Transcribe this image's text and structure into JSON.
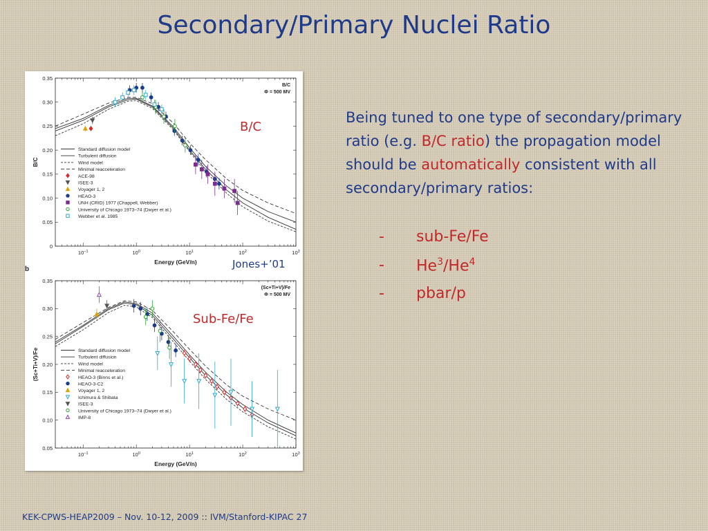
{
  "slide": {
    "title": "Secondary/Primary Nuclei Ratio",
    "intro_1": "Being tuned to one type of secondary/primary ratio (e.g. ",
    "intro_hl1": "B/C ratio",
    "intro_2": ") the propagation model should be ",
    "intro_hl2": "automatically",
    "intro_3": " consistent with all secondary/primary ratios:",
    "bullets": [
      {
        "dash": "-",
        "text": "sub-Fe/Fe",
        "sup1": "",
        "mid": "",
        "sup2": ""
      },
      {
        "dash": "-",
        "text": "He",
        "sup1": "3",
        "mid": "/He",
        "sup2": "4"
      },
      {
        "dash": "-",
        "text": "pbar/p",
        "sup1": "",
        "mid": "",
        "sup2": ""
      }
    ],
    "footer": "KEK-CPWS-HEAP2009 – Nov. 10-12, 2009 :: IVM/Stanford-KIPAC  27",
    "overlay_bc": "B/C",
    "overlay_jones": "Jones+’01",
    "overlay_subfe": "Sub-Fe/Fe",
    "colors": {
      "title_blue": "#1f3a8a",
      "highlight_red": "#c0282a"
    }
  },
  "chart_data": [
    {
      "type": "line",
      "panel_letter": "",
      "corner_label": [
        "B/C",
        "Φ = 500 MV"
      ],
      "xlabel": "Energy (GeV/n)",
      "ylabel": "B/C",
      "xscale": "log",
      "xlim": [
        0.03,
        1000
      ],
      "ylim": [
        0,
        0.35
      ],
      "x_ticks": [
        {
          "v": 0.1,
          "base": "10",
          "exp": "−1"
        },
        {
          "v": 1,
          "base": "10",
          "exp": "0"
        },
        {
          "v": 10,
          "base": "10",
          "exp": "1"
        },
        {
          "v": 100,
          "base": "10",
          "exp": "2"
        },
        {
          "v": 1000,
          "base": "10",
          "exp": "3"
        }
      ],
      "y_ticks": [
        "0",
        "0.05",
        "0.10",
        "0.15",
        "0.20",
        "0.25",
        "0.30",
        "0.35"
      ],
      "legend_position": "center-left",
      "models": [
        {
          "name": "Standard diffusion model",
          "dash": "",
          "x": [
            0.03,
            0.1,
            0.3,
            0.7,
            1,
            2,
            5,
            10,
            20,
            50,
            100,
            300,
            1000
          ],
          "y": [
            0.24,
            0.262,
            0.29,
            0.305,
            0.306,
            0.29,
            0.245,
            0.2,
            0.16,
            0.117,
            0.09,
            0.06,
            0.035
          ]
        },
        {
          "name": "Turbulent diffusion",
          "dash": "",
          "x": [
            0.03,
            0.1,
            0.3,
            0.7,
            1,
            2,
            5,
            10,
            20,
            50,
            100,
            300,
            1000
          ],
          "y": [
            0.245,
            0.266,
            0.293,
            0.308,
            0.308,
            0.292,
            0.248,
            0.205,
            0.166,
            0.125,
            0.1,
            0.072,
            0.05
          ]
        },
        {
          "name": "Wind model",
          "dash": "3,2",
          "x": [
            0.03,
            0.1,
            0.3,
            0.7,
            1,
            2,
            5,
            10,
            20,
            50,
            100,
            300,
            1000
          ],
          "y": [
            0.23,
            0.255,
            0.285,
            0.302,
            0.303,
            0.287,
            0.242,
            0.197,
            0.155,
            0.11,
            0.082,
            0.052,
            0.03
          ]
        },
        {
          "name": "Minimal reacceleration",
          "dash": "5,3",
          "x": [
            0.03,
            0.1,
            0.3,
            0.7,
            1,
            2,
            5,
            10,
            20,
            50,
            100,
            300,
            1000
          ],
          "y": [
            0.25,
            0.275,
            0.298,
            0.31,
            0.31,
            0.297,
            0.256,
            0.215,
            0.18,
            0.14,
            0.116,
            0.09,
            0.068
          ]
        }
      ],
      "datasets": [
        {
          "name": "ACE-98",
          "marker": "diamond",
          "color": "#d62728",
          "fill": true,
          "points": [
            [
              0.14,
              0.245,
              0.005
            ]
          ]
        },
        {
          "name": "ISEE-3",
          "marker": "tri-down",
          "color": "#555555",
          "fill": true,
          "points": [
            [
              0.15,
              0.262,
              0.008
            ]
          ]
        },
        {
          "name": "Voyager 1, 2",
          "marker": "tri-up",
          "color": "#d9a400",
          "fill": true,
          "points": [
            [
              0.11,
              0.245,
              0.006
            ]
          ]
        },
        {
          "name": "HEAO-3",
          "marker": "circle",
          "color": "#1a3b8c",
          "fill": true,
          "points": [
            [
              0.75,
              0.325,
              0.01
            ],
            [
              1.0,
              0.33,
              0.01
            ],
            [
              1.3,
              0.33,
              0.01
            ],
            [
              1.9,
              0.31,
              0.01
            ],
            [
              2.6,
              0.29,
              0.01
            ],
            [
              3.6,
              0.27,
              0.01
            ],
            [
              5.2,
              0.24,
              0.01
            ],
            [
              7.3,
              0.22,
              0.01
            ],
            [
              10.4,
              0.2,
              0.01
            ],
            [
              14.6,
              0.18,
              0.012
            ],
            [
              21,
              0.155,
              0.012
            ],
            [
              30,
              0.14,
              0.012
            ],
            [
              36,
              0.13,
              0.012
            ]
          ]
        },
        {
          "name": "UNH (CRID) 1977 (Chappell, Webber)",
          "marker": "square",
          "color": "#7b2d8e",
          "fill": true,
          "points": [
            [
              13,
              0.17,
              0.02
            ],
            [
              17,
              0.16,
              0.02
            ],
            [
              22,
              0.15,
              0.02
            ],
            [
              30,
              0.13,
              0.025
            ],
            [
              45,
              0.12,
              0.02
            ],
            [
              70,
              0.115,
              0.025
            ],
            [
              80,
              0.09,
              0.025
            ]
          ]
        },
        {
          "name": "University of Chicago 1973–74 (Dwyer et al.)",
          "marker": "circle",
          "color": "#2ca02c",
          "fill": false,
          "points": [
            [
              1.3,
              0.31,
              0.012
            ],
            [
              2.3,
              0.29,
              0.015
            ],
            [
              3.3,
              0.27,
              0.015
            ],
            [
              5.3,
              0.25,
              0.015
            ],
            [
              8.3,
              0.21,
              0.015
            ]
          ]
        },
        {
          "name": "Webber et al. 1985",
          "marker": "square",
          "color": "#2aa7c9",
          "fill": false,
          "points": [
            [
              0.4,
              0.3,
              0.01
            ],
            [
              0.55,
              0.31,
              0.01
            ],
            [
              0.7,
              0.32,
              0.01
            ],
            [
              0.9,
              0.325,
              0.01
            ],
            [
              1.5,
              0.315,
              0.01
            ],
            [
              2.2,
              0.295,
              0.01
            ],
            [
              3,
              0.285,
              0.01
            ]
          ]
        }
      ]
    },
    {
      "type": "line",
      "panel_letter": "b",
      "corner_label": [
        "(Sc+Ti+V)/Fe",
        "Φ = 500 MV"
      ],
      "xlabel": "Energy (GeV/n)",
      "ylabel": "(Sc+Ti+V)/Fe",
      "xscale": "log",
      "xlim": [
        0.03,
        1000
      ],
      "ylim": [
        0.05,
        0.35
      ],
      "x_ticks": [
        {
          "v": 0.1,
          "base": "10",
          "exp": "−1"
        },
        {
          "v": 1,
          "base": "10",
          "exp": "0"
        },
        {
          "v": 10,
          "base": "10",
          "exp": "1"
        },
        {
          "v": 100,
          "base": "10",
          "exp": "2"
        },
        {
          "v": 1000,
          "base": "10",
          "exp": "3"
        }
      ],
      "y_ticks": [
        "0.05",
        "0.10",
        "0.15",
        "0.20",
        "0.25",
        "0.30",
        "0.35"
      ],
      "legend_position": "center-left",
      "models": [
        {
          "name": "Standard diffusion model",
          "dash": "",
          "x": [
            0.03,
            0.1,
            0.3,
            0.6,
            1,
            2,
            5,
            10,
            20,
            50,
            100,
            300,
            1000
          ],
          "y": [
            0.237,
            0.268,
            0.298,
            0.31,
            0.307,
            0.288,
            0.245,
            0.212,
            0.18,
            0.145,
            0.122,
            0.095,
            0.072
          ]
        },
        {
          "name": "Turbulent diffusion",
          "dash": "",
          "x": [
            0.03,
            0.1,
            0.3,
            0.6,
            1,
            2,
            5,
            10,
            20,
            50,
            100,
            300,
            1000
          ],
          "y": [
            0.24,
            0.27,
            0.3,
            0.312,
            0.309,
            0.292,
            0.25,
            0.217,
            0.186,
            0.15,
            0.128,
            0.1,
            0.077
          ]
        },
        {
          "name": "Wind model",
          "dash": "3,2",
          "x": [
            0.03,
            0.1,
            0.3,
            0.6,
            1,
            2,
            5,
            10,
            20,
            50,
            100,
            300,
            1000
          ],
          "y": [
            0.232,
            0.262,
            0.293,
            0.306,
            0.303,
            0.284,
            0.24,
            0.206,
            0.173,
            0.137,
            0.115,
            0.088,
            0.066
          ]
        },
        {
          "name": "Minimal reacceleration",
          "dash": "5,3",
          "x": [
            0.03,
            0.1,
            0.3,
            0.6,
            1,
            2,
            5,
            10,
            20,
            50,
            100,
            300,
            1000
          ],
          "y": [
            0.245,
            0.275,
            0.302,
            0.314,
            0.312,
            0.297,
            0.258,
            0.227,
            0.197,
            0.163,
            0.143,
            0.12,
            0.1
          ]
        }
      ],
      "datasets": [
        {
          "name": "HEAO-3 (Binns et al.)",
          "marker": "diamond",
          "color": "#d62728",
          "fill": false,
          "points": [
            [
              8,
              0.22,
              0.006
            ],
            [
              10,
              0.21,
              0.006
            ],
            [
              13,
              0.2,
              0.006
            ],
            [
              16,
              0.19,
              0.006
            ],
            [
              20,
              0.18,
              0.006
            ],
            [
              26,
              0.17,
              0.006
            ],
            [
              33,
              0.16,
              0.006
            ],
            [
              45,
              0.15,
              0.006
            ],
            [
              60,
              0.14,
              0.006
            ],
            [
              80,
              0.13,
              0.006
            ],
            [
              110,
              0.12,
              0.006
            ],
            [
              150,
              0.11,
              0.008
            ]
          ]
        },
        {
          "name": "HEAO-3-C2",
          "marker": "circle",
          "color": "#1a3b8c",
          "fill": true,
          "points": [
            [
              0.9,
              0.305,
              0.012
            ],
            [
              1.2,
              0.3,
              0.012
            ],
            [
              1.6,
              0.29,
              0.012
            ],
            [
              2.2,
              0.27,
              0.012
            ],
            [
              3,
              0.255,
              0.012
            ],
            [
              4,
              0.24,
              0.012
            ],
            [
              5.5,
              0.225,
              0.012
            ]
          ]
        },
        {
          "name": "Voyager 1, 2",
          "marker": "tri-up",
          "color": "#d9a400",
          "fill": true,
          "points": [
            [
              0.18,
              0.29,
              0.01
            ]
          ]
        },
        {
          "name": "Ichimura & Shibata",
          "marker": "tri-down",
          "color": "#2aa7c9",
          "fill": false,
          "points": [
            [
              2.5,
              0.22,
              0.03
            ],
            [
              4.5,
              0.2,
              0.04
            ],
            [
              8,
              0.17,
              0.04
            ],
            [
              15,
              0.17,
              0.05
            ],
            [
              30,
              0.145,
              0.06
            ],
            [
              60,
              0.15,
              0.06
            ],
            [
              150,
              0.12,
              0.05
            ],
            [
              450,
              0.12,
              0.07
            ]
          ]
        },
        {
          "name": "ISEE-3",
          "marker": "tri-down",
          "color": "#555555",
          "fill": true,
          "points": [
            [
              0.28,
              0.305,
              0.01
            ]
          ]
        },
        {
          "name": "University of Chicago 1973–74 (Dwyer et al.)",
          "marker": "circle",
          "color": "#2ca02c",
          "fill": false,
          "points": [
            [
              1.5,
              0.285,
              0.015
            ],
            [
              2,
              0.3,
              0.015
            ],
            [
              2.8,
              0.26,
              0.02
            ],
            [
              4.2,
              0.23,
              0.02
            ]
          ]
        },
        {
          "name": "IMP-8",
          "marker": "tri-up",
          "color": "#8e44ad",
          "fill": false,
          "points": [
            [
              0.2,
              0.325,
              0.015
            ]
          ]
        }
      ]
    }
  ]
}
